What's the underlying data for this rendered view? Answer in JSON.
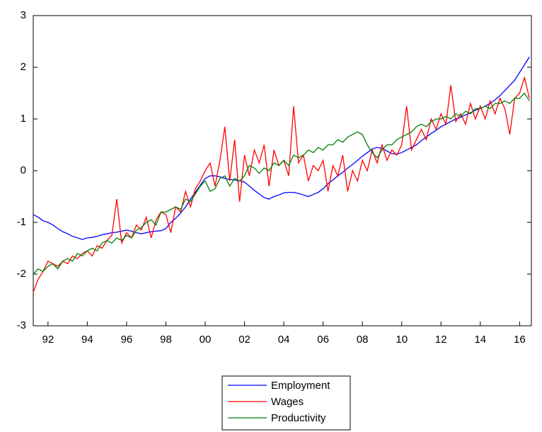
{
  "chart_data": {
    "type": "line",
    "x": [
      1991.25,
      1991.5,
      1991.75,
      1992,
      1992.25,
      1992.5,
      1992.75,
      1993,
      1993.25,
      1993.5,
      1993.75,
      1994,
      1994.25,
      1994.5,
      1994.75,
      1995,
      1995.25,
      1995.5,
      1995.75,
      1996,
      1996.25,
      1996.5,
      1996.75,
      1997,
      1997.25,
      1997.5,
      1997.75,
      1998,
      1998.25,
      1998.5,
      1998.75,
      1999,
      1999.25,
      1999.5,
      1999.75,
      2000,
      2000.25,
      2000.5,
      2000.75,
      2001,
      2001.25,
      2001.5,
      2001.75,
      2002,
      2002.25,
      2002.5,
      2002.75,
      2003,
      2003.25,
      2003.5,
      2003.75,
      2004,
      2004.25,
      2004.5,
      2004.75,
      2005,
      2005.25,
      2005.5,
      2005.75,
      2006,
      2006.25,
      2006.5,
      2006.75,
      2007,
      2007.25,
      2007.5,
      2007.75,
      2008,
      2008.25,
      2008.5,
      2008.75,
      2009,
      2009.25,
      2009.5,
      2009.75,
      2010,
      2010.25,
      2010.5,
      2010.75,
      2011,
      2011.25,
      2011.5,
      2011.75,
      2012,
      2012.25,
      2012.5,
      2012.75,
      2013,
      2013.25,
      2013.5,
      2013.75,
      2014,
      2014.25,
      2014.5,
      2014.75,
      2015,
      2015.25,
      2015.5,
      2015.75,
      2016,
      2016.25,
      2016.5
    ],
    "series": [
      {
        "name": "Employment",
        "color": "#0000ff",
        "values": [
          -0.85,
          -0.9,
          -0.97,
          -1.0,
          -1.05,
          -1.12,
          -1.18,
          -1.22,
          -1.27,
          -1.3,
          -1.33,
          -1.3,
          -1.29,
          -1.27,
          -1.24,
          -1.22,
          -1.2,
          -1.19,
          -1.17,
          -1.15,
          -1.17,
          -1.2,
          -1.22,
          -1.2,
          -1.18,
          -1.17,
          -1.16,
          -1.12,
          -1.0,
          -0.92,
          -0.82,
          -0.7,
          -0.55,
          -0.42,
          -0.28,
          -0.15,
          -0.1,
          -0.1,
          -0.12,
          -0.15,
          -0.17,
          -0.18,
          -0.2,
          -0.22,
          -0.3,
          -0.38,
          -0.45,
          -0.52,
          -0.55,
          -0.5,
          -0.47,
          -0.43,
          -0.42,
          -0.42,
          -0.44,
          -0.47,
          -0.5,
          -0.46,
          -0.42,
          -0.35,
          -0.25,
          -0.18,
          -0.1,
          -0.03,
          0.05,
          0.12,
          0.2,
          0.28,
          0.35,
          0.42,
          0.45,
          0.43,
          0.38,
          0.33,
          0.32,
          0.35,
          0.4,
          0.45,
          0.5,
          0.58,
          0.65,
          0.72,
          0.78,
          0.85,
          0.9,
          0.95,
          1.0,
          1.03,
          1.08,
          1.12,
          1.17,
          1.2,
          1.25,
          1.3,
          1.37,
          1.45,
          1.55,
          1.65,
          1.75,
          1.9,
          2.05,
          2.2
        ]
      },
      {
        "name": "Wages",
        "color": "#ff0000",
        "values": [
          -2.35,
          -2.1,
          -1.95,
          -1.75,
          -1.8,
          -1.85,
          -1.75,
          -1.8,
          -1.65,
          -1.7,
          -1.6,
          -1.55,
          -1.65,
          -1.45,
          -1.5,
          -1.35,
          -1.25,
          -0.55,
          -1.4,
          -1.2,
          -1.3,
          -1.05,
          -1.15,
          -0.9,
          -1.3,
          -0.95,
          -0.8,
          -0.85,
          -1.2,
          -0.7,
          -0.8,
          -0.4,
          -0.7,
          -0.35,
          -0.2,
          0.0,
          0.15,
          -0.3,
          0.2,
          0.85,
          -0.2,
          0.6,
          -0.6,
          0.3,
          -0.1,
          0.4,
          0.15,
          0.5,
          -0.3,
          0.4,
          0.1,
          0.2,
          -0.1,
          1.25,
          0.15,
          0.3,
          -0.2,
          0.1,
          0.0,
          0.2,
          -0.4,
          0.1,
          -0.1,
          0.3,
          -0.4,
          0.0,
          -0.2,
          0.2,
          0.0,
          0.4,
          0.15,
          0.5,
          0.2,
          0.4,
          0.3,
          0.5,
          1.25,
          0.4,
          0.6,
          0.8,
          0.6,
          1.0,
          0.8,
          1.1,
          0.9,
          1.65,
          0.95,
          1.1,
          0.9,
          1.3,
          1.0,
          1.25,
          1.0,
          1.35,
          1.1,
          1.4,
          1.2,
          0.7,
          1.4,
          1.5,
          1.8,
          1.4
        ]
      },
      {
        "name": "Productivity",
        "color": "#008000",
        "values": [
          -2.0,
          -1.9,
          -1.95,
          -1.85,
          -1.8,
          -1.9,
          -1.75,
          -1.7,
          -1.75,
          -1.6,
          -1.65,
          -1.55,
          -1.5,
          -1.55,
          -1.4,
          -1.35,
          -1.4,
          -1.3,
          -1.35,
          -1.25,
          -1.3,
          -1.15,
          -1.1,
          -1.0,
          -0.95,
          -1.05,
          -0.8,
          -0.8,
          -0.75,
          -0.7,
          -0.75,
          -0.55,
          -0.6,
          -0.45,
          -0.3,
          -0.2,
          -0.4,
          -0.35,
          -0.15,
          -0.1,
          -0.3,
          -0.15,
          -0.2,
          -0.1,
          0.1,
          0.05,
          -0.05,
          0.05,
          0.0,
          0.15,
          0.1,
          0.2,
          0.1,
          0.3,
          0.25,
          0.3,
          0.4,
          0.35,
          0.45,
          0.4,
          0.5,
          0.5,
          0.6,
          0.55,
          0.65,
          0.7,
          0.75,
          0.7,
          0.5,
          0.35,
          0.25,
          0.4,
          0.5,
          0.5,
          0.6,
          0.65,
          0.7,
          0.75,
          0.85,
          0.9,
          0.85,
          0.95,
          1.0,
          1.0,
          1.05,
          1.0,
          1.1,
          1.05,
          1.15,
          1.1,
          1.2,
          1.2,
          1.25,
          1.2,
          1.3,
          1.3,
          1.35,
          1.3,
          1.4,
          1.4,
          1.5,
          1.35
        ]
      }
    ],
    "xlim": [
      1991.25,
      2016.6
    ],
    "xticks": [
      {
        "value": 1992,
        "label": "92"
      },
      {
        "value": 1994,
        "label": "94"
      },
      {
        "value": 1996,
        "label": "96"
      },
      {
        "value": 1998,
        "label": "98"
      },
      {
        "value": 2000,
        "label": "00"
      },
      {
        "value": 2002,
        "label": "02"
      },
      {
        "value": 2004,
        "label": "04"
      },
      {
        "value": 2006,
        "label": "06"
      },
      {
        "value": 2008,
        "label": "08"
      },
      {
        "value": 2010,
        "label": "10"
      },
      {
        "value": 2012,
        "label": "12"
      },
      {
        "value": 2014,
        "label": "14"
      },
      {
        "value": 2016,
        "label": "16"
      }
    ],
    "ylim": [
      -3,
      3
    ],
    "yticks": [
      -3,
      -2,
      -1,
      0,
      1,
      2,
      3
    ],
    "grid": false,
    "legend": "bottom"
  }
}
